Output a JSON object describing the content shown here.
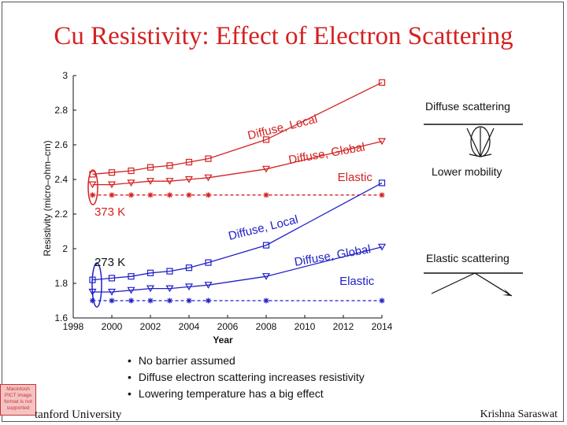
{
  "slide": {
    "title": "Cu Resistivity: Effect of Electron Scattering",
    "bullets": [
      "No barrier assumed",
      "Diffuse electron scattering increases resistivity",
      "Lowering temperature has a big effect"
    ],
    "footer_left": "tanford University",
    "footer_right": "Krishna Saraswat",
    "pict_badge": "Macintosh PICT image format is not supported"
  },
  "side_labels": {
    "diffuse_scattering": "Diffuse scattering",
    "lower_mobility": "Lower mobility",
    "elastic_scattering": "Elastic scattering"
  },
  "colors": {
    "red": "#d42020",
    "blue": "#2020c8",
    "title": "#d42020"
  },
  "chart_data": {
    "type": "line",
    "xlabel": "Year",
    "ylabel": "Resistivity (micro–ohm–cm)",
    "xlim": [
      1998,
      2014
    ],
    "ylim": [
      1.6,
      3.0
    ],
    "xticks": [
      1998,
      2000,
      2002,
      2004,
      2006,
      2008,
      2010,
      2012,
      2014
    ],
    "yticks": [
      1.6,
      1.8,
      2.0,
      2.2,
      2.4,
      2.6,
      2.8,
      3.0
    ],
    "x": [
      1999,
      2000,
      2001,
      2002,
      2003,
      2004,
      2005,
      2008,
      2014
    ],
    "annotations": [
      {
        "text": "373 K",
        "x": 1999.1,
        "y": 2.19,
        "color": "#d42020",
        "rotate": 0
      },
      {
        "text": "273 K",
        "x": 1999.1,
        "y": 1.9,
        "color": "#111111",
        "rotate": 0
      },
      {
        "text": "Diffuse, Local",
        "x": 2007.1,
        "y": 2.63,
        "color": "#d42020",
        "rotate": -14
      },
      {
        "text": "Diffuse, Global",
        "x": 2009.2,
        "y": 2.49,
        "color": "#d42020",
        "rotate": -10
      },
      {
        "text": "Elastic",
        "x": 2011.7,
        "y": 2.39,
        "color": "#d42020",
        "rotate": 0
      },
      {
        "text": "Diffuse, Local",
        "x": 2006.1,
        "y": 2.05,
        "color": "#2020c8",
        "rotate": -14
      },
      {
        "text": "Diffuse, Global",
        "x": 2009.5,
        "y": 1.9,
        "color": "#2020c8",
        "rotate": -10
      },
      {
        "text": "Elastic",
        "x": 2011.8,
        "y": 1.79,
        "color": "#2020c8",
        "rotate": 0
      }
    ],
    "series": [
      {
        "temp": "373 K",
        "curve": "Diffuse, Local",
        "color": "#d42020",
        "marker": "square",
        "dash": false,
        "values": [
          2.43,
          2.44,
          2.45,
          2.47,
          2.48,
          2.5,
          2.52,
          2.63,
          2.96
        ]
      },
      {
        "temp": "373 K",
        "curve": "Diffuse, Global",
        "color": "#d42020",
        "marker": "triangle",
        "dash": false,
        "values": [
          2.37,
          2.37,
          2.38,
          2.39,
          2.39,
          2.4,
          2.41,
          2.46,
          2.62
        ]
      },
      {
        "temp": "373 K",
        "curve": "Elastic",
        "color": "#d42020",
        "marker": "star",
        "dash": true,
        "values": [
          2.31,
          2.31,
          2.31,
          2.31,
          2.31,
          2.31,
          2.31,
          2.31,
          2.31
        ]
      },
      {
        "temp": "273 K",
        "curve": "Diffuse, Local",
        "color": "#2020c8",
        "marker": "square",
        "dash": false,
        "values": [
          1.82,
          1.83,
          1.84,
          1.86,
          1.87,
          1.89,
          1.92,
          2.02,
          2.38
        ]
      },
      {
        "temp": "273 K",
        "curve": "Diffuse, Global",
        "color": "#2020c8",
        "marker": "triangle",
        "dash": false,
        "values": [
          1.75,
          1.75,
          1.76,
          1.77,
          1.77,
          1.78,
          1.79,
          1.84,
          2.01
        ]
      },
      {
        "temp": "273 K",
        "curve": "Elastic",
        "color": "#2020c8",
        "marker": "star",
        "dash": true,
        "values": [
          1.7,
          1.7,
          1.7,
          1.7,
          1.7,
          1.7,
          1.7,
          1.7,
          1.7
        ]
      }
    ]
  }
}
